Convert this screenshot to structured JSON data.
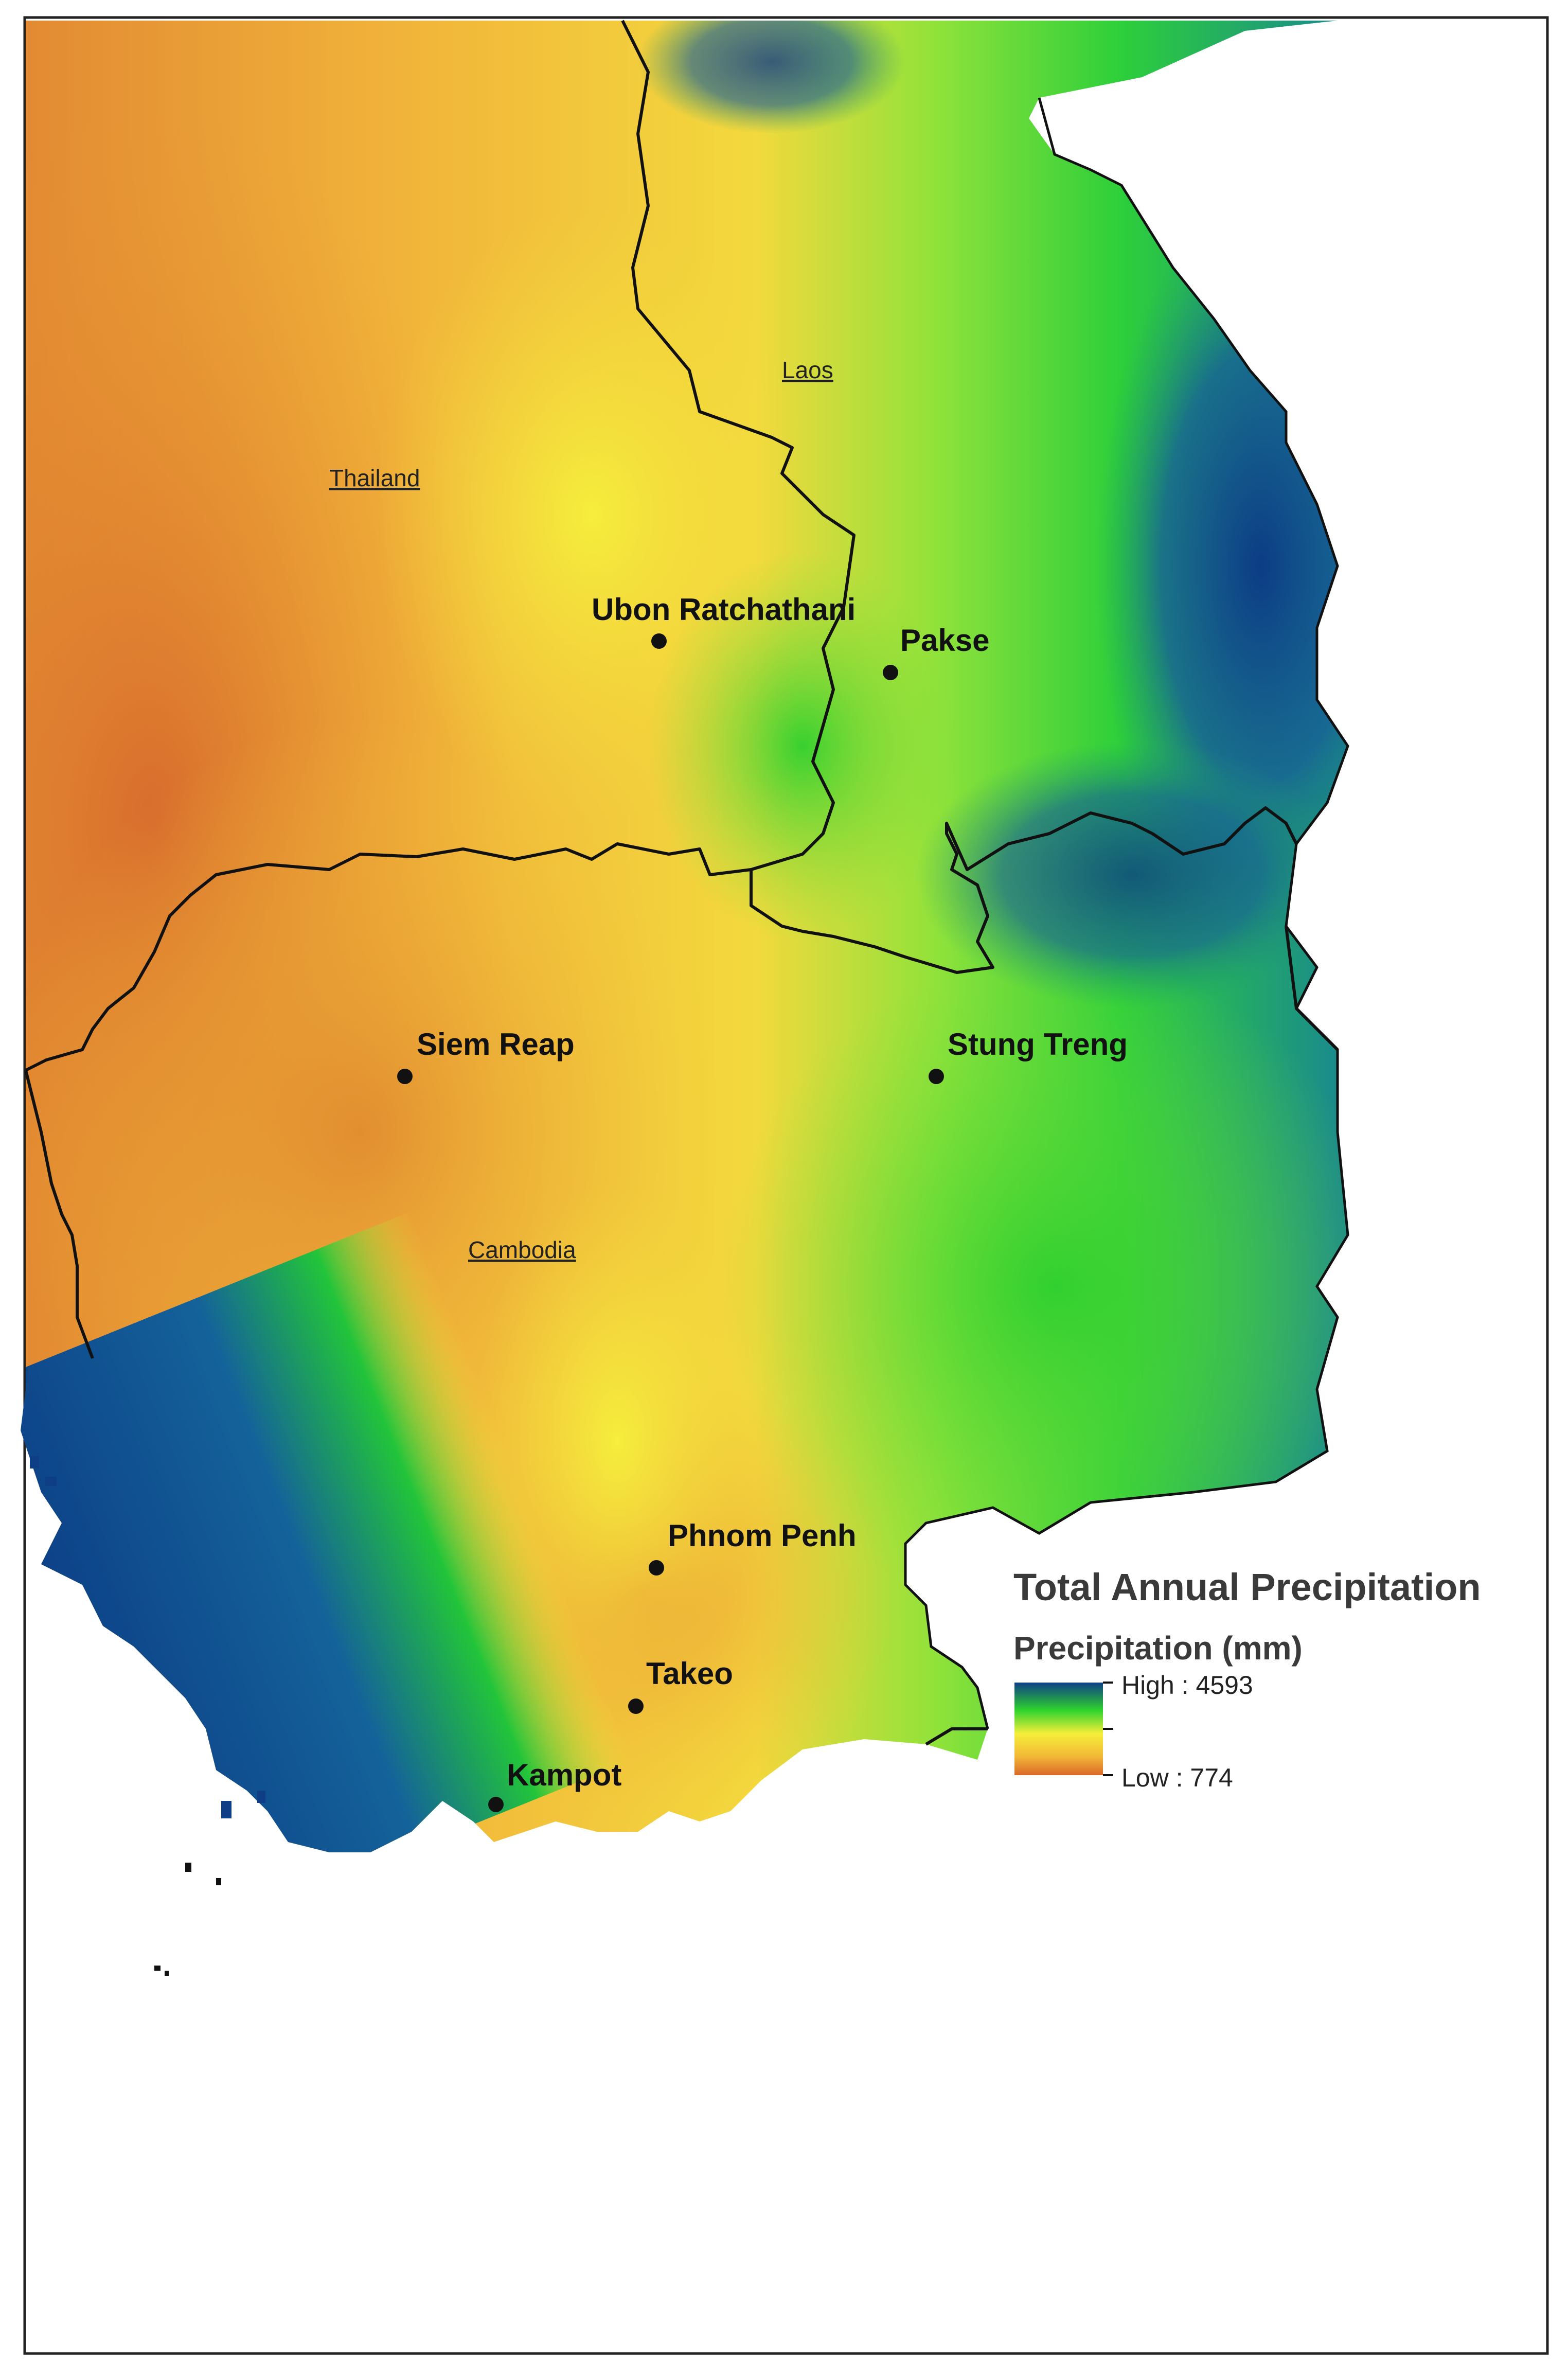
{
  "map": {
    "countries": {
      "thailand": "Thailand",
      "laos": "Laos",
      "cambodia": "Cambodia"
    },
    "cities": {
      "ubon": "Ubon Ratchathani",
      "pakse": "Pakse",
      "siem_reap": "Siem Reap",
      "stung_treng": "Stung Treng",
      "phnom_penh": "Phnom Penh",
      "takeo": "Takeo",
      "kampot": "Kampot"
    },
    "colors": {
      "low": "#d9682a",
      "mid_low": "#f2b735",
      "mid": "#f5ef3a",
      "mid_high": "#2ed32c",
      "high": "#0e3f86",
      "border": "#111111"
    }
  },
  "legend": {
    "title": "Total Annual Precipitation",
    "subtitle": "Precipitation (mm)",
    "high_label": "High : 4593",
    "low_label": "Low : 774",
    "high_value": 4593,
    "low_value": 774
  }
}
